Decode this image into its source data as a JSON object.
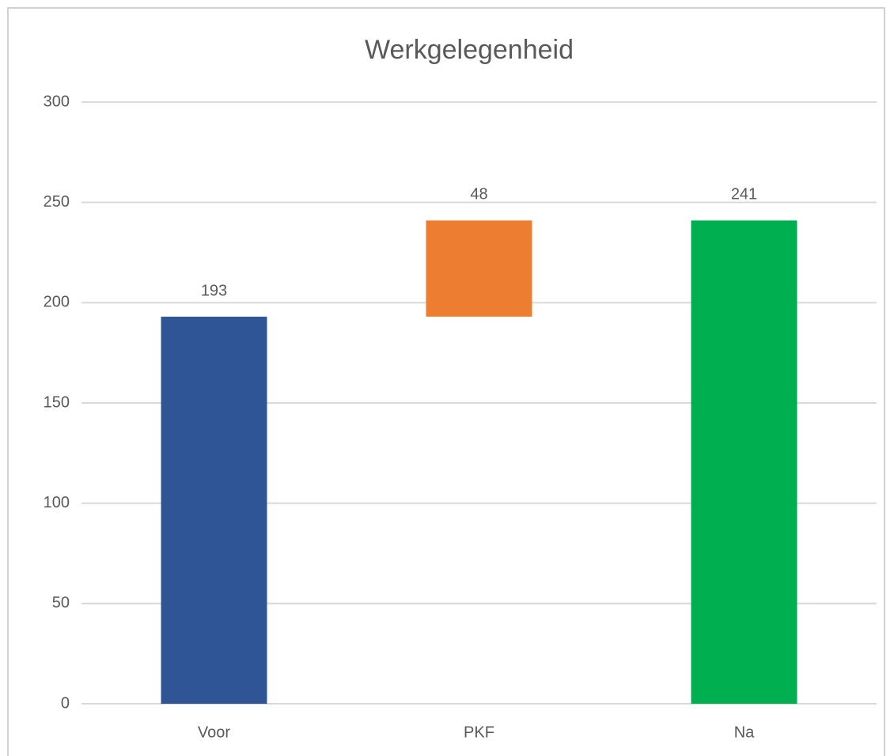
{
  "chart_data": {
    "type": "waterfall",
    "title": "Werkgelegenheid",
    "categories": [
      "Voor",
      "PKF",
      "Na"
    ],
    "values": [
      193,
      48,
      241
    ],
    "measure": [
      "absolute",
      "relative",
      "absolute"
    ],
    "colors": [
      "#2f5597",
      "#ed7d31",
      "#00b050"
    ],
    "ylim": [
      0,
      300
    ],
    "yticks": [
      0,
      50,
      100,
      150,
      200,
      250,
      300
    ],
    "grid": true
  }
}
